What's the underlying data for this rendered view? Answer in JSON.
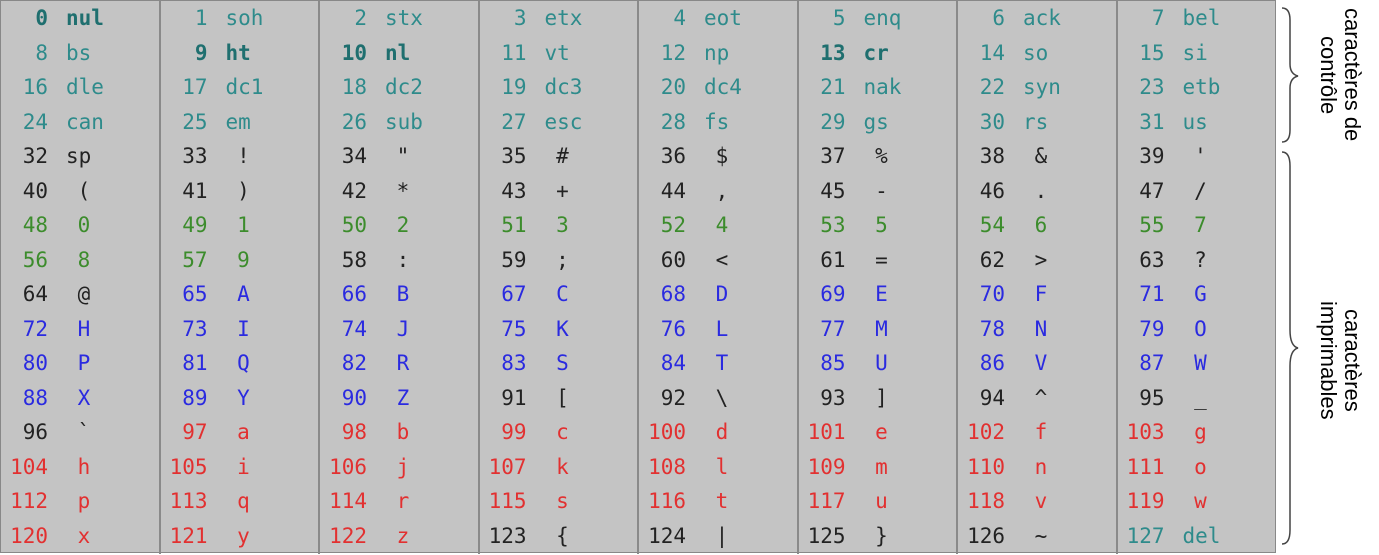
{
  "columns": [
    {
      "cells": [
        {
          "code": "0",
          "char": "nul",
          "cls": "bold"
        },
        {
          "code": "8",
          "char": "bs",
          "cls": "ctrl"
        },
        {
          "code": "16",
          "char": "dle",
          "cls": "ctrl"
        },
        {
          "code": "24",
          "char": "can",
          "cls": "ctrl"
        },
        {
          "code": "32",
          "char": "sp",
          "cls": "sym"
        },
        {
          "code": "40",
          "char": "(",
          "cls": "sym"
        },
        {
          "code": "48",
          "char": "0",
          "cls": "digit"
        },
        {
          "code": "56",
          "char": "8",
          "cls": "digit"
        },
        {
          "code": "64",
          "char": "@",
          "cls": "sym"
        },
        {
          "code": "72",
          "char": "H",
          "cls": "upper"
        },
        {
          "code": "80",
          "char": "P",
          "cls": "upper"
        },
        {
          "code": "88",
          "char": "X",
          "cls": "upper"
        },
        {
          "code": "96",
          "char": "`",
          "cls": "sym"
        },
        {
          "code": "104",
          "char": "h",
          "cls": "lower"
        },
        {
          "code": "112",
          "char": "p",
          "cls": "lower"
        },
        {
          "code": "120",
          "char": "x",
          "cls": "lower"
        }
      ]
    },
    {
      "cells": [
        {
          "code": "1",
          "char": "soh",
          "cls": "ctrl"
        },
        {
          "code": "9",
          "char": "ht",
          "cls": "bold"
        },
        {
          "code": "17",
          "char": "dc1",
          "cls": "ctrl"
        },
        {
          "code": "25",
          "char": "em",
          "cls": "ctrl"
        },
        {
          "code": "33",
          "char": "!",
          "cls": "sym"
        },
        {
          "code": "41",
          "char": ")",
          "cls": "sym"
        },
        {
          "code": "49",
          "char": "1",
          "cls": "digit"
        },
        {
          "code": "57",
          "char": "9",
          "cls": "digit"
        },
        {
          "code": "65",
          "char": "A",
          "cls": "upper"
        },
        {
          "code": "73",
          "char": "I",
          "cls": "upper"
        },
        {
          "code": "81",
          "char": "Q",
          "cls": "upper"
        },
        {
          "code": "89",
          "char": "Y",
          "cls": "upper"
        },
        {
          "code": "97",
          "char": "a",
          "cls": "lower"
        },
        {
          "code": "105",
          "char": "i",
          "cls": "lower"
        },
        {
          "code": "113",
          "char": "q",
          "cls": "lower"
        },
        {
          "code": "121",
          "char": "y",
          "cls": "lower"
        }
      ]
    },
    {
      "cells": [
        {
          "code": "2",
          "char": "stx",
          "cls": "ctrl"
        },
        {
          "code": "10",
          "char": "nl",
          "cls": "bold"
        },
        {
          "code": "18",
          "char": "dc2",
          "cls": "ctrl"
        },
        {
          "code": "26",
          "char": "sub",
          "cls": "ctrl"
        },
        {
          "code": "34",
          "char": "\"",
          "cls": "sym"
        },
        {
          "code": "42",
          "char": "*",
          "cls": "sym"
        },
        {
          "code": "50",
          "char": "2",
          "cls": "digit"
        },
        {
          "code": "58",
          "char": ":",
          "cls": "sym"
        },
        {
          "code": "66",
          "char": "B",
          "cls": "upper"
        },
        {
          "code": "74",
          "char": "J",
          "cls": "upper"
        },
        {
          "code": "82",
          "char": "R",
          "cls": "upper"
        },
        {
          "code": "90",
          "char": "Z",
          "cls": "upper"
        },
        {
          "code": "98",
          "char": "b",
          "cls": "lower"
        },
        {
          "code": "106",
          "char": "j",
          "cls": "lower"
        },
        {
          "code": "114",
          "char": "r",
          "cls": "lower"
        },
        {
          "code": "122",
          "char": "z",
          "cls": "lower"
        }
      ]
    },
    {
      "cells": [
        {
          "code": "3",
          "char": "etx",
          "cls": "ctrl"
        },
        {
          "code": "11",
          "char": "vt",
          "cls": "ctrl"
        },
        {
          "code": "19",
          "char": "dc3",
          "cls": "ctrl"
        },
        {
          "code": "27",
          "char": "esc",
          "cls": "ctrl"
        },
        {
          "code": "35",
          "char": "#",
          "cls": "sym"
        },
        {
          "code": "43",
          "char": "+",
          "cls": "sym"
        },
        {
          "code": "51",
          "char": "3",
          "cls": "digit"
        },
        {
          "code": "59",
          "char": ";",
          "cls": "sym"
        },
        {
          "code": "67",
          "char": "C",
          "cls": "upper"
        },
        {
          "code": "75",
          "char": "K",
          "cls": "upper"
        },
        {
          "code": "83",
          "char": "S",
          "cls": "upper"
        },
        {
          "code": "91",
          "char": "[",
          "cls": "sym"
        },
        {
          "code": "99",
          "char": "c",
          "cls": "lower"
        },
        {
          "code": "107",
          "char": "k",
          "cls": "lower"
        },
        {
          "code": "115",
          "char": "s",
          "cls": "lower"
        },
        {
          "code": "123",
          "char": "{",
          "cls": "sym"
        }
      ]
    },
    {
      "cells": [
        {
          "code": "4",
          "char": "eot",
          "cls": "ctrl"
        },
        {
          "code": "12",
          "char": "np",
          "cls": "ctrl"
        },
        {
          "code": "20",
          "char": "dc4",
          "cls": "ctrl"
        },
        {
          "code": "28",
          "char": "fs",
          "cls": "ctrl"
        },
        {
          "code": "36",
          "char": "$",
          "cls": "sym"
        },
        {
          "code": "44",
          "char": ",",
          "cls": "sym"
        },
        {
          "code": "52",
          "char": "4",
          "cls": "digit"
        },
        {
          "code": "60",
          "char": "<",
          "cls": "sym"
        },
        {
          "code": "68",
          "char": "D",
          "cls": "upper"
        },
        {
          "code": "76",
          "char": "L",
          "cls": "upper"
        },
        {
          "code": "84",
          "char": "T",
          "cls": "upper"
        },
        {
          "code": "92",
          "char": "\\",
          "cls": "sym"
        },
        {
          "code": "100",
          "char": "d",
          "cls": "lower"
        },
        {
          "code": "108",
          "char": "l",
          "cls": "lower"
        },
        {
          "code": "116",
          "char": "t",
          "cls": "lower"
        },
        {
          "code": "124",
          "char": "|",
          "cls": "sym"
        }
      ]
    },
    {
      "cells": [
        {
          "code": "5",
          "char": "enq",
          "cls": "ctrl"
        },
        {
          "code": "13",
          "char": "cr",
          "cls": "bold"
        },
        {
          "code": "21",
          "char": "nak",
          "cls": "ctrl"
        },
        {
          "code": "29",
          "char": "gs",
          "cls": "ctrl"
        },
        {
          "code": "37",
          "char": "%",
          "cls": "sym"
        },
        {
          "code": "45",
          "char": "-",
          "cls": "sym"
        },
        {
          "code": "53",
          "char": "5",
          "cls": "digit"
        },
        {
          "code": "61",
          "char": "=",
          "cls": "sym"
        },
        {
          "code": "69",
          "char": "E",
          "cls": "upper"
        },
        {
          "code": "77",
          "char": "M",
          "cls": "upper"
        },
        {
          "code": "85",
          "char": "U",
          "cls": "upper"
        },
        {
          "code": "93",
          "char": "]",
          "cls": "sym"
        },
        {
          "code": "101",
          "char": "e",
          "cls": "lower"
        },
        {
          "code": "109",
          "char": "m",
          "cls": "lower"
        },
        {
          "code": "117",
          "char": "u",
          "cls": "lower"
        },
        {
          "code": "125",
          "char": "}",
          "cls": "sym"
        }
      ]
    },
    {
      "cells": [
        {
          "code": "6",
          "char": "ack",
          "cls": "ctrl"
        },
        {
          "code": "14",
          "char": "so",
          "cls": "ctrl"
        },
        {
          "code": "22",
          "char": "syn",
          "cls": "ctrl"
        },
        {
          "code": "30",
          "char": "rs",
          "cls": "ctrl"
        },
        {
          "code": "38",
          "char": "&",
          "cls": "sym"
        },
        {
          "code": "46",
          "char": ".",
          "cls": "sym"
        },
        {
          "code": "54",
          "char": "6",
          "cls": "digit"
        },
        {
          "code": "62",
          "char": ">",
          "cls": "sym"
        },
        {
          "code": "70",
          "char": "F",
          "cls": "upper"
        },
        {
          "code": "78",
          "char": "N",
          "cls": "upper"
        },
        {
          "code": "86",
          "char": "V",
          "cls": "upper"
        },
        {
          "code": "94",
          "char": "^",
          "cls": "sym"
        },
        {
          "code": "102",
          "char": "f",
          "cls": "lower"
        },
        {
          "code": "110",
          "char": "n",
          "cls": "lower"
        },
        {
          "code": "118",
          "char": "v",
          "cls": "lower"
        },
        {
          "code": "126",
          "char": "~",
          "cls": "sym"
        }
      ]
    },
    {
      "cells": [
        {
          "code": "7",
          "char": "bel",
          "cls": "ctrl"
        },
        {
          "code": "15",
          "char": "si",
          "cls": "ctrl"
        },
        {
          "code": "23",
          "char": "etb",
          "cls": "ctrl"
        },
        {
          "code": "31",
          "char": "us",
          "cls": "ctrl"
        },
        {
          "code": "39",
          "char": "'",
          "cls": "sym"
        },
        {
          "code": "47",
          "char": "/",
          "cls": "sym"
        },
        {
          "code": "55",
          "char": "7",
          "cls": "digit"
        },
        {
          "code": "63",
          "char": "?",
          "cls": "sym"
        },
        {
          "code": "71",
          "char": "G",
          "cls": "upper"
        },
        {
          "code": "79",
          "char": "O",
          "cls": "upper"
        },
        {
          "code": "87",
          "char": "W",
          "cls": "upper"
        },
        {
          "code": "95",
          "char": "_",
          "cls": "sym"
        },
        {
          "code": "103",
          "char": "g",
          "cls": "lower"
        },
        {
          "code": "111",
          "char": "o",
          "cls": "lower"
        },
        {
          "code": "119",
          "char": "w",
          "cls": "lower"
        },
        {
          "code": "127",
          "char": "del",
          "cls": "ctrl"
        }
      ]
    }
  ],
  "labels": {
    "control": "caractères de contrôle",
    "printable": "caractères imprimables"
  },
  "colors": {
    "control": "#2e8b8b",
    "digit": "#3c8c2c",
    "upper": "#2a2ae0",
    "lower": "#e23030",
    "symbol": "#222222",
    "background": "#c4c4c4"
  }
}
